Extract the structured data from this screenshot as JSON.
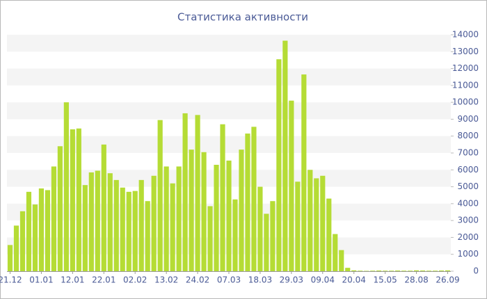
{
  "chart_data": {
    "type": "bar",
    "title": "Статистика активности",
    "categories": [
      "21.12",
      null,
      null,
      null,
      null,
      "01.01",
      null,
      null,
      null,
      null,
      "12.01",
      null,
      null,
      null,
      null,
      "22.01",
      null,
      null,
      null,
      null,
      "02.02",
      null,
      null,
      null,
      null,
      "13.02",
      null,
      null,
      null,
      null,
      "24.02",
      null,
      null,
      null,
      null,
      "07.03",
      null,
      null,
      null,
      null,
      "18.03",
      null,
      null,
      null,
      null,
      "29.03",
      null,
      null,
      null,
      null,
      "09.04",
      null,
      null,
      null,
      null,
      "20.04",
      null,
      null,
      null,
      null,
      "15.05",
      null,
      null,
      null,
      null,
      "28.08",
      null,
      null,
      null,
      null,
      "26.09"
    ],
    "values": [
      1550,
      2700,
      3550,
      4700,
      3950,
      4900,
      4800,
      6200,
      7400,
      10000,
      8400,
      8450,
      5100,
      5850,
      5950,
      7500,
      5800,
      5400,
      4950,
      4700,
      4750,
      5400,
      4150,
      5650,
      8950,
      6200,
      5200,
      6200,
      9350,
      7200,
      9250,
      7050,
      3850,
      6300,
      8700,
      6550,
      4250,
      7200,
      8150,
      8550,
      5000,
      3400,
      4150,
      12550,
      13650,
      10100,
      5300,
      11650,
      6000,
      5500,
      5650,
      4300,
      2200,
      1250,
      200,
      50,
      30,
      20,
      30,
      40,
      30,
      30,
      40,
      30,
      30,
      50,
      40,
      30,
      30,
      40,
      50
    ],
    "color": "#b5dc35",
    "ylim": [
      0,
      14000
    ],
    "yticks": [
      0,
      1000,
      2000,
      3000,
      4000,
      5000,
      6000,
      7000,
      8000,
      9000,
      10000,
      11000,
      12000,
      13000,
      14000
    ],
    "grid": true
  }
}
